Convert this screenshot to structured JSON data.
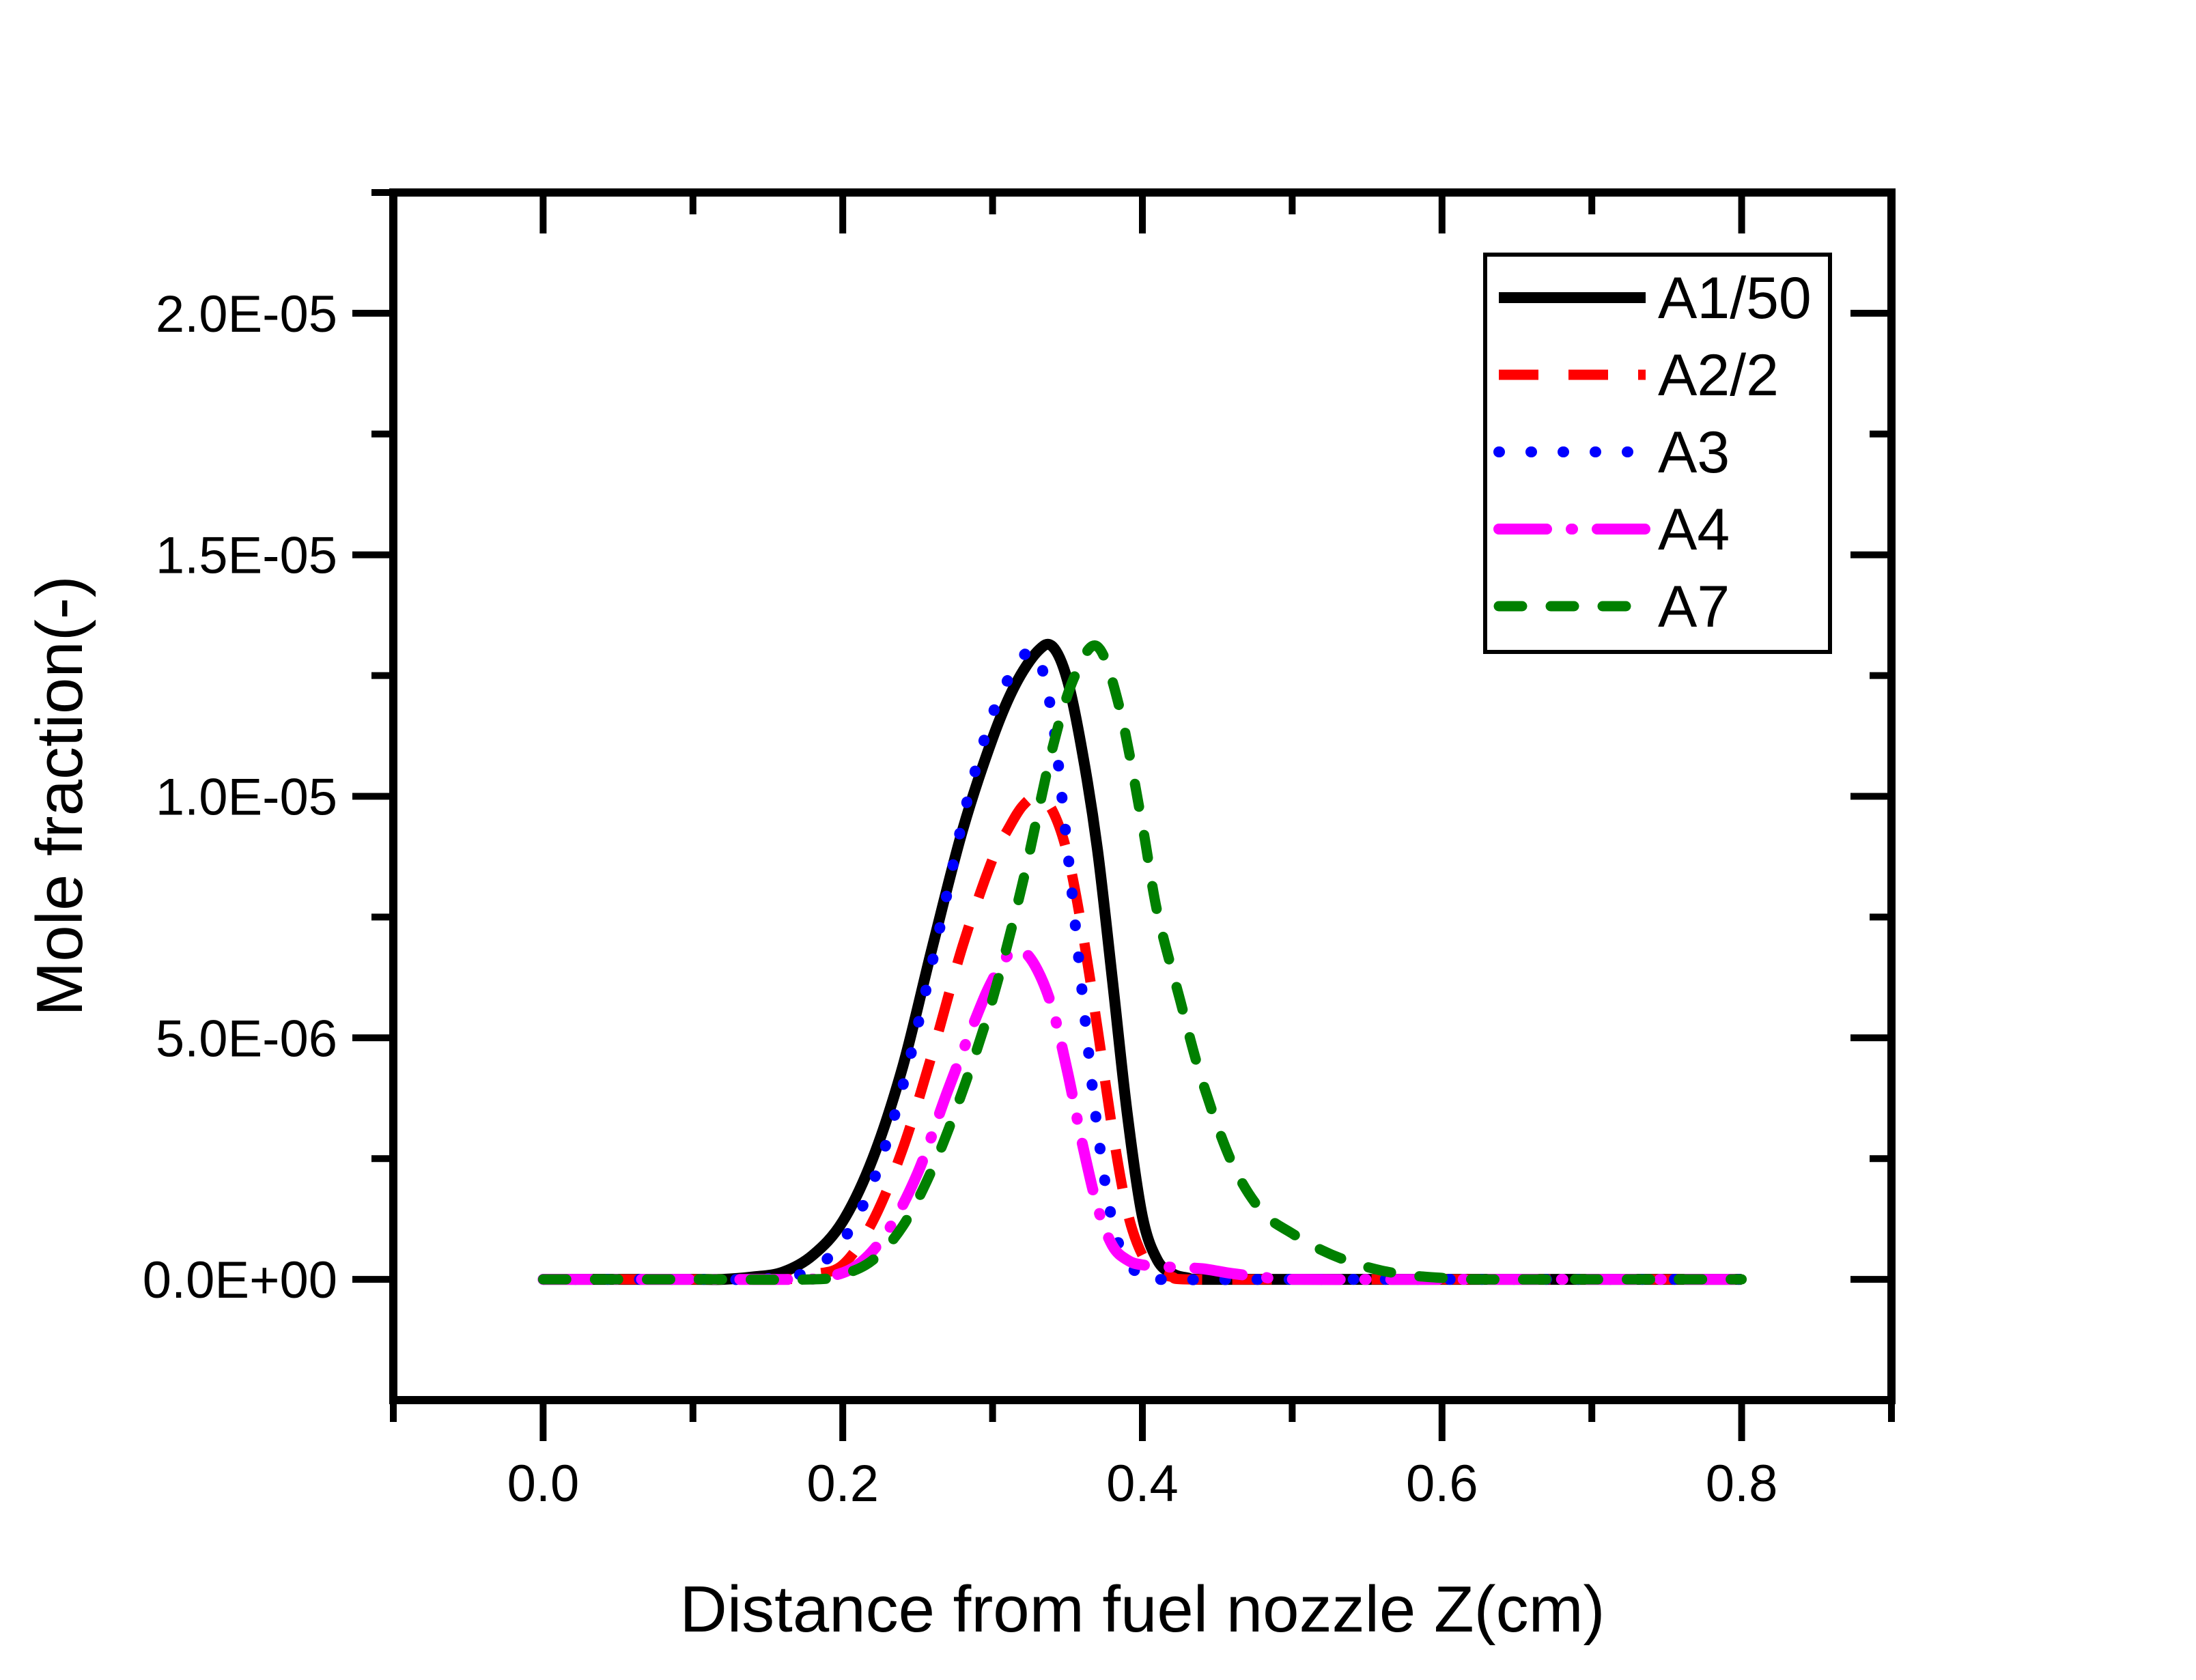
{
  "chart_data": {
    "type": "line",
    "title": "",
    "xlabel": "Distance from fuel nozzle Z(cm)",
    "ylabel": "Mole fraction(-)",
    "xlim": [
      -0.1,
      0.9
    ],
    "ylim": [
      -2.5e-06,
      2.25e-05
    ],
    "grid": false,
    "legend_position": "upper right",
    "x_axis": {
      "major_ticks": [
        {
          "value": 0.0,
          "label": "0.0"
        },
        {
          "value": 0.2,
          "label": "0.2"
        },
        {
          "value": 0.4,
          "label": "0.4"
        },
        {
          "value": 0.6,
          "label": "0.6"
        },
        {
          "value": 0.8,
          "label": "0.8"
        }
      ],
      "minor_ticks": [
        -0.1,
        0.1,
        0.3,
        0.5,
        0.7,
        0.9
      ]
    },
    "y_axis": {
      "major_ticks": [
        {
          "value": 0.0,
          "label": "0.0E+00"
        },
        {
          "value": 5e-06,
          "label": "5.0E-06"
        },
        {
          "value": 1e-05,
          "label": "1.0E-05"
        },
        {
          "value": 1.5e-05,
          "label": "1.5E-05"
        },
        {
          "value": 2e-05,
          "label": "2.0E-05"
        }
      ],
      "minor_ticks": [
        2.5e-06,
        7.5e-06,
        1.25e-05,
        1.75e-05,
        2.25e-05
      ]
    },
    "series": [
      {
        "name": "A1/50",
        "color": "#000000",
        "line_style": "solid",
        "dash": "",
        "linecap": "butt",
        "width": 16,
        "points": [
          [
            0.0,
            0
          ],
          [
            0.05,
            0
          ],
          [
            0.1,
            0
          ],
          [
            0.12,
            0
          ],
          [
            0.14,
            5e-08
          ],
          [
            0.16,
            1.5e-07
          ],
          [
            0.18,
            5e-07
          ],
          [
            0.2,
            1.2e-06
          ],
          [
            0.22,
            2.5e-06
          ],
          [
            0.24,
            4.4e-06
          ],
          [
            0.26,
            6.9e-06
          ],
          [
            0.28,
            9.3e-06
          ],
          [
            0.3,
            1.12e-05
          ],
          [
            0.315,
            1.23e-05
          ],
          [
            0.33,
            1.3e-05
          ],
          [
            0.34,
            1.31e-05
          ],
          [
            0.35,
            1.24e-05
          ],
          [
            0.36,
            1.09e-05
          ],
          [
            0.37,
            8.9e-06
          ],
          [
            0.38,
            6.2e-06
          ],
          [
            0.39,
            3.4e-06
          ],
          [
            0.4,
            1.3e-06
          ],
          [
            0.41,
            4e-07
          ],
          [
            0.42,
            1.2e-07
          ],
          [
            0.43,
            3e-08
          ],
          [
            0.44,
            0
          ],
          [
            0.5,
            0
          ],
          [
            0.6,
            0
          ],
          [
            0.7,
            0
          ],
          [
            0.8,
            0
          ]
        ]
      },
      {
        "name": "A2/2",
        "color": "#ff0000",
        "line_style": "dashed",
        "dash": "58 44",
        "linecap": "butt",
        "width": 15,
        "points": [
          [
            0.0,
            0
          ],
          [
            0.1,
            0
          ],
          [
            0.16,
            0
          ],
          [
            0.18,
            1e-07
          ],
          [
            0.2,
            3e-07
          ],
          [
            0.22,
            1.2e-06
          ],
          [
            0.24,
            2.7e-06
          ],
          [
            0.26,
            4.7e-06
          ],
          [
            0.28,
            6.9e-06
          ],
          [
            0.3,
            8.7e-06
          ],
          [
            0.31,
            9.3e-06
          ],
          [
            0.32,
            9.8e-06
          ],
          [
            0.33,
            1e-05
          ],
          [
            0.34,
            9.7e-06
          ],
          [
            0.35,
            8.8e-06
          ],
          [
            0.36,
            7.2e-06
          ],
          [
            0.37,
            5.2e-06
          ],
          [
            0.38,
            3.1e-06
          ],
          [
            0.39,
            1.4e-06
          ],
          [
            0.4,
            5e-07
          ],
          [
            0.41,
            1.5e-07
          ],
          [
            0.42,
            5e-08
          ],
          [
            0.43,
            0
          ],
          [
            0.5,
            0
          ],
          [
            0.6,
            0
          ],
          [
            0.7,
            0
          ],
          [
            0.8,
            0
          ]
        ]
      },
      {
        "name": "A3",
        "color": "#0000ff",
        "line_style": "dotted",
        "dash": "1 46",
        "linecap": "round",
        "width": 16,
        "points": [
          [
            0.0,
            0
          ],
          [
            0.1,
            0
          ],
          [
            0.14,
            0
          ],
          [
            0.16,
            5e-08
          ],
          [
            0.18,
            2e-07
          ],
          [
            0.2,
            8e-07
          ],
          [
            0.22,
            2e-06
          ],
          [
            0.24,
            4e-06
          ],
          [
            0.26,
            6.6e-06
          ],
          [
            0.28,
            9.5e-06
          ],
          [
            0.29,
            1.07e-05
          ],
          [
            0.3,
            1.17e-05
          ],
          [
            0.31,
            1.24e-05
          ],
          [
            0.32,
            1.29e-05
          ],
          [
            0.33,
            1.29e-05
          ],
          [
            0.34,
            1.16e-05
          ],
          [
            0.35,
            8.9e-06
          ],
          [
            0.36,
            5.9e-06
          ],
          [
            0.37,
            3.1e-06
          ],
          [
            0.38,
            1.2e-06
          ],
          [
            0.39,
            3.5e-07
          ],
          [
            0.4,
            1e-07
          ],
          [
            0.41,
            0
          ],
          [
            0.5,
            0
          ],
          [
            0.6,
            0
          ],
          [
            0.7,
            0
          ],
          [
            0.8,
            0
          ]
        ]
      },
      {
        "name": "A4",
        "color": "#ff00ff",
        "line_style": "dashdot",
        "dash": "70 36 2 36",
        "linecap": "round",
        "width": 16,
        "points": [
          [
            0.0,
            0
          ],
          [
            0.1,
            0
          ],
          [
            0.17,
            0
          ],
          [
            0.19,
            5e-08
          ],
          [
            0.21,
            3e-07
          ],
          [
            0.23,
            1e-06
          ],
          [
            0.25,
            2.2e-06
          ],
          [
            0.27,
            3.9e-06
          ],
          [
            0.29,
            5.5e-06
          ],
          [
            0.3,
            6.2e-06
          ],
          [
            0.31,
            6.7e-06
          ],
          [
            0.32,
            6.8e-06
          ],
          [
            0.33,
            6.4e-06
          ],
          [
            0.34,
            5.6e-06
          ],
          [
            0.35,
            4.3e-06
          ],
          [
            0.36,
            2.8e-06
          ],
          [
            0.37,
            1.5e-06
          ],
          [
            0.38,
            7e-07
          ],
          [
            0.39,
            4e-07
          ],
          [
            0.4,
            3e-07
          ],
          [
            0.42,
            2.5e-07
          ],
          [
            0.44,
            2.2e-07
          ],
          [
            0.46,
            1.2e-07
          ],
          [
            0.48,
            5e-08
          ],
          [
            0.5,
            0
          ],
          [
            0.6,
            0
          ],
          [
            0.7,
            0
          ],
          [
            0.8,
            0
          ]
        ]
      },
      {
        "name": "A7",
        "color": "#008000",
        "line_style": "short-dash",
        "dash": "34 42",
        "linecap": "round",
        "width": 15,
        "points": [
          [
            0.0,
            0
          ],
          [
            0.1,
            0
          ],
          [
            0.18,
            0
          ],
          [
            0.2,
            1e-07
          ],
          [
            0.22,
            4e-07
          ],
          [
            0.24,
            1.1e-06
          ],
          [
            0.26,
            2.3e-06
          ],
          [
            0.28,
            3.9e-06
          ],
          [
            0.3,
            5.8e-06
          ],
          [
            0.32,
            8.2e-06
          ],
          [
            0.34,
            1.1e-05
          ],
          [
            0.355,
            1.25e-05
          ],
          [
            0.37,
            1.31e-05
          ],
          [
            0.385,
            1.18e-05
          ],
          [
            0.4,
            9.4e-06
          ],
          [
            0.41,
            7.6e-06
          ],
          [
            0.425,
            5.8e-06
          ],
          [
            0.44,
            4.1e-06
          ],
          [
            0.46,
            2.4e-06
          ],
          [
            0.48,
            1.4e-06
          ],
          [
            0.5,
            9.5e-07
          ],
          [
            0.52,
            6e-07
          ],
          [
            0.54,
            3.5e-07
          ],
          [
            0.56,
            1.8e-07
          ],
          [
            0.58,
            8e-08
          ],
          [
            0.6,
            3e-08
          ],
          [
            0.62,
            0
          ],
          [
            0.7,
            0
          ],
          [
            0.8,
            0
          ]
        ]
      }
    ]
  }
}
